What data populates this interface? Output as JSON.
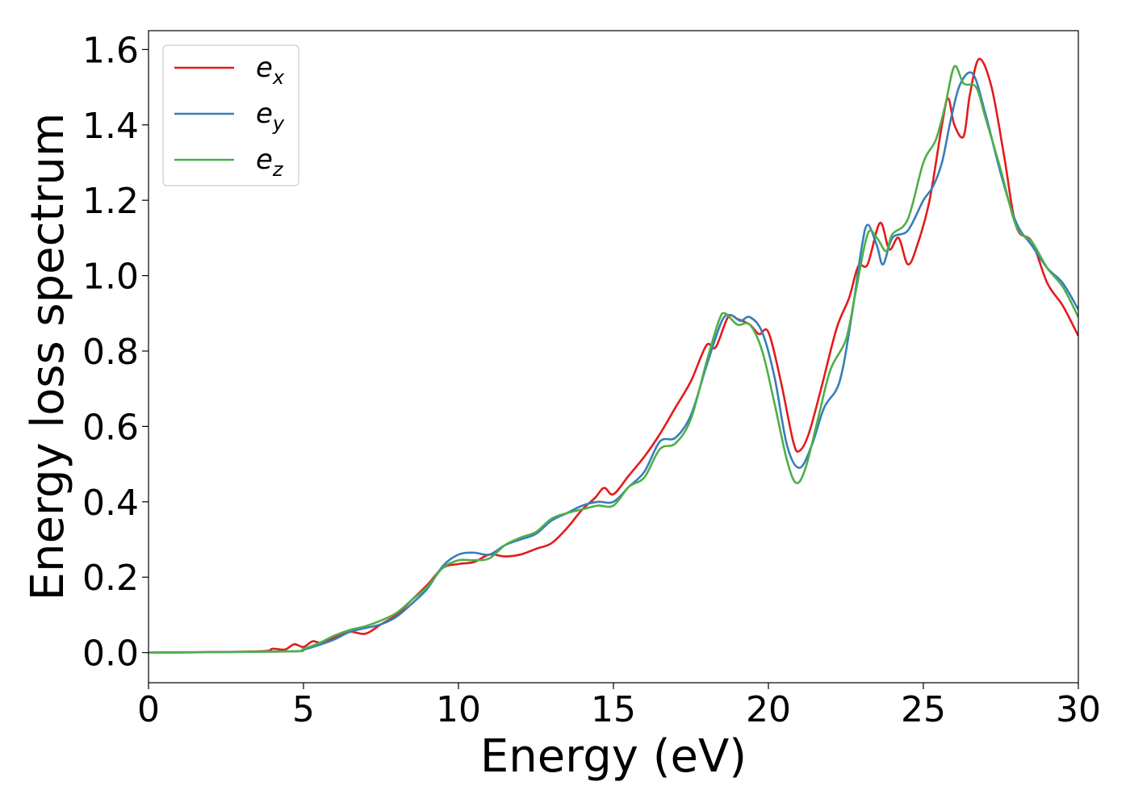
{
  "chart_data": {
    "type": "line",
    "xlabel": "Energy (eV)",
    "ylabel": "Energy loss spectrum",
    "xlim": [
      0,
      30
    ],
    "ylim": [
      -0.08,
      1.65
    ],
    "xticks": [
      0,
      5,
      10,
      15,
      20,
      25,
      30
    ],
    "xtick_labels": [
      "0",
      "5",
      "10",
      "15",
      "20",
      "25",
      "30"
    ],
    "yticks": [
      0.0,
      0.2,
      0.4,
      0.6,
      0.8,
      1.0,
      1.2,
      1.4,
      1.6
    ],
    "ytick_labels": [
      "0.0",
      "0.2",
      "0.4",
      "0.6",
      "0.8",
      "1.0",
      "1.2",
      "1.4",
      "1.6"
    ],
    "grid": false,
    "legend_position": "top-left",
    "series": [
      {
        "base": "e",
        "sub": "x",
        "color": "#e41a1c",
        "points": [
          [
            0,
            0
          ],
          [
            3.5,
            0.003
          ],
          [
            4.0,
            0.01
          ],
          [
            4.4,
            0.008
          ],
          [
            4.7,
            0.022
          ],
          [
            5.0,
            0.015
          ],
          [
            5.3,
            0.03
          ],
          [
            5.6,
            0.025
          ],
          [
            6.0,
            0.04
          ],
          [
            6.5,
            0.055
          ],
          [
            7.0,
            0.05
          ],
          [
            7.5,
            0.075
          ],
          [
            8.0,
            0.1
          ],
          [
            8.5,
            0.14
          ],
          [
            9.0,
            0.18
          ],
          [
            9.5,
            0.225
          ],
          [
            10.0,
            0.235
          ],
          [
            10.5,
            0.24
          ],
          [
            11.0,
            0.26
          ],
          [
            11.5,
            0.255
          ],
          [
            12.0,
            0.26
          ],
          [
            12.5,
            0.275
          ],
          [
            13.0,
            0.29
          ],
          [
            13.5,
            0.33
          ],
          [
            14.0,
            0.38
          ],
          [
            14.4,
            0.41
          ],
          [
            14.7,
            0.437
          ],
          [
            15.0,
            0.42
          ],
          [
            15.5,
            0.47
          ],
          [
            16.0,
            0.52
          ],
          [
            16.5,
            0.58
          ],
          [
            17.0,
            0.65
          ],
          [
            17.5,
            0.72
          ],
          [
            18.0,
            0.815
          ],
          [
            18.3,
            0.81
          ],
          [
            18.7,
            0.89
          ],
          [
            19.0,
            0.885
          ],
          [
            19.4,
            0.87
          ],
          [
            19.7,
            0.845
          ],
          [
            20.0,
            0.85
          ],
          [
            20.4,
            0.72
          ],
          [
            20.8,
            0.56
          ],
          [
            21.0,
            0.535
          ],
          [
            21.3,
            0.58
          ],
          [
            21.7,
            0.7
          ],
          [
            22.2,
            0.86
          ],
          [
            22.6,
            0.94
          ],
          [
            22.9,
            1.025
          ],
          [
            23.2,
            1.03
          ],
          [
            23.6,
            1.14
          ],
          [
            23.9,
            1.07
          ],
          [
            24.2,
            1.1
          ],
          [
            24.5,
            1.03
          ],
          [
            24.8,
            1.08
          ],
          [
            25.2,
            1.2
          ],
          [
            25.6,
            1.4
          ],
          [
            25.8,
            1.47
          ],
          [
            26.0,
            1.4
          ],
          [
            26.3,
            1.37
          ],
          [
            26.5,
            1.48
          ],
          [
            26.8,
            1.575
          ],
          [
            27.2,
            1.5
          ],
          [
            27.6,
            1.32
          ],
          [
            28.0,
            1.13
          ],
          [
            28.5,
            1.09
          ],
          [
            29.0,
            0.98
          ],
          [
            29.5,
            0.92
          ],
          [
            30.0,
            0.84
          ]
        ]
      },
      {
        "base": "e",
        "sub": "y",
        "color": "#377eb8",
        "points": [
          [
            0,
            0
          ],
          [
            4.5,
            0.003
          ],
          [
            5.0,
            0.008
          ],
          [
            5.5,
            0.02
          ],
          [
            6.0,
            0.035
          ],
          [
            6.5,
            0.055
          ],
          [
            7.0,
            0.065
          ],
          [
            7.5,
            0.075
          ],
          [
            8.0,
            0.095
          ],
          [
            8.5,
            0.13
          ],
          [
            9.0,
            0.17
          ],
          [
            9.5,
            0.23
          ],
          [
            10.0,
            0.26
          ],
          [
            10.5,
            0.265
          ],
          [
            11.0,
            0.26
          ],
          [
            11.5,
            0.285
          ],
          [
            12.0,
            0.3
          ],
          [
            12.5,
            0.315
          ],
          [
            13.0,
            0.35
          ],
          [
            13.5,
            0.37
          ],
          [
            14.0,
            0.39
          ],
          [
            14.5,
            0.4
          ],
          [
            15.0,
            0.4
          ],
          [
            15.5,
            0.44
          ],
          [
            16.0,
            0.48
          ],
          [
            16.5,
            0.56
          ],
          [
            17.0,
            0.57
          ],
          [
            17.5,
            0.63
          ],
          [
            18.0,
            0.76
          ],
          [
            18.5,
            0.88
          ],
          [
            18.8,
            0.895
          ],
          [
            19.1,
            0.88
          ],
          [
            19.4,
            0.89
          ],
          [
            19.8,
            0.85
          ],
          [
            20.2,
            0.73
          ],
          [
            20.6,
            0.55
          ],
          [
            21.0,
            0.49
          ],
          [
            21.4,
            0.55
          ],
          [
            21.8,
            0.65
          ],
          [
            22.3,
            0.72
          ],
          [
            22.7,
            0.9
          ],
          [
            23.0,
            1.07
          ],
          [
            23.2,
            1.135
          ],
          [
            23.5,
            1.08
          ],
          [
            23.7,
            1.03
          ],
          [
            24.0,
            1.1
          ],
          [
            24.5,
            1.12
          ],
          [
            25.0,
            1.2
          ],
          [
            25.3,
            1.235
          ],
          [
            25.6,
            1.3
          ],
          [
            25.9,
            1.42
          ],
          [
            26.2,
            1.51
          ],
          [
            26.6,
            1.535
          ],
          [
            27.0,
            1.43
          ],
          [
            27.5,
            1.27
          ],
          [
            28.0,
            1.14
          ],
          [
            28.5,
            1.08
          ],
          [
            29.0,
            1.02
          ],
          [
            29.5,
            0.98
          ],
          [
            30.0,
            0.91
          ]
        ]
      },
      {
        "base": "e",
        "sub": "z",
        "color": "#4daf4a",
        "points": [
          [
            0,
            0
          ],
          [
            4.5,
            0.003
          ],
          [
            5.0,
            0.01
          ],
          [
            5.5,
            0.025
          ],
          [
            6.0,
            0.045
          ],
          [
            6.5,
            0.06
          ],
          [
            7.0,
            0.07
          ],
          [
            7.5,
            0.085
          ],
          [
            8.0,
            0.105
          ],
          [
            8.5,
            0.14
          ],
          [
            9.0,
            0.175
          ],
          [
            9.5,
            0.225
          ],
          [
            10.0,
            0.245
          ],
          [
            10.5,
            0.245
          ],
          [
            11.0,
            0.25
          ],
          [
            11.5,
            0.285
          ],
          [
            12.0,
            0.305
          ],
          [
            12.5,
            0.32
          ],
          [
            13.0,
            0.355
          ],
          [
            13.5,
            0.37
          ],
          [
            14.0,
            0.38
          ],
          [
            14.5,
            0.39
          ],
          [
            15.0,
            0.39
          ],
          [
            15.5,
            0.44
          ],
          [
            16.0,
            0.465
          ],
          [
            16.5,
            0.54
          ],
          [
            17.0,
            0.555
          ],
          [
            17.5,
            0.62
          ],
          [
            18.0,
            0.77
          ],
          [
            18.4,
            0.88
          ],
          [
            18.6,
            0.9
          ],
          [
            19.0,
            0.87
          ],
          [
            19.4,
            0.87
          ],
          [
            19.8,
            0.8
          ],
          [
            20.2,
            0.66
          ],
          [
            20.6,
            0.51
          ],
          [
            20.9,
            0.45
          ],
          [
            21.2,
            0.49
          ],
          [
            21.6,
            0.62
          ],
          [
            22.0,
            0.75
          ],
          [
            22.5,
            0.83
          ],
          [
            22.8,
            0.95
          ],
          [
            23.2,
            1.11
          ],
          [
            23.5,
            1.1
          ],
          [
            23.8,
            1.065
          ],
          [
            24.0,
            1.11
          ],
          [
            24.5,
            1.15
          ],
          [
            25.0,
            1.3
          ],
          [
            25.4,
            1.36
          ],
          [
            25.7,
            1.45
          ],
          [
            26.0,
            1.555
          ],
          [
            26.3,
            1.51
          ],
          [
            26.7,
            1.5
          ],
          [
            27.0,
            1.42
          ],
          [
            27.5,
            1.28
          ],
          [
            28.0,
            1.13
          ],
          [
            28.5,
            1.09
          ],
          [
            29.0,
            1.02
          ],
          [
            29.5,
            0.97
          ],
          [
            30.0,
            0.89
          ]
        ]
      }
    ]
  }
}
